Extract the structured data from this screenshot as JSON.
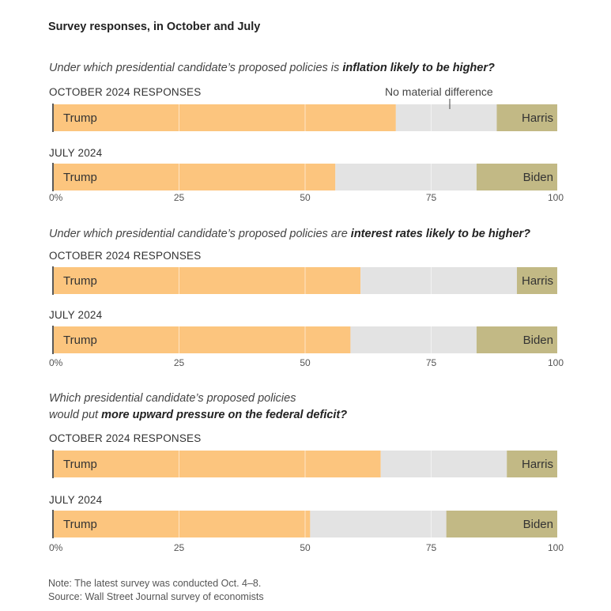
{
  "title": "Survey responses, in October and July",
  "no_material_difference_label": "No material difference",
  "colors": {
    "trump": "#fcc57e",
    "neutral": "#e3e3e3",
    "other": "#c2b985",
    "grid": "#ffffff",
    "baseline": "#5a5a5a"
  },
  "questions": [
    {
      "prefix": "Under which presidential candidate’s proposed policies is ",
      "bold": "inflation likely to be higher?"
    },
    {
      "prefix": "Under which presidential candidate’s proposed policies are ",
      "bold": "interest rates likely to be higher?"
    },
    {
      "line1": "Which presidential candidate’s proposed policies",
      "prefix2": "would put ",
      "bold": "more upward pressure on the federal deficit?"
    }
  ],
  "chart_data": {
    "type": "stacked-bar",
    "title": "Survey responses, in October and July",
    "xlim": [
      0,
      100
    ],
    "ticks": [
      "0%",
      "25",
      "50",
      "75",
      "100"
    ],
    "series_names": [
      "Trump",
      "No material difference",
      "Harris / Biden"
    ],
    "groups": [
      {
        "question": "inflation likely to be higher?",
        "bars": [
          {
            "period": "OCTOBER 2024 RESPONSES",
            "left_label": "Trump",
            "right_label": "Harris",
            "trump": 68,
            "neutral": 20,
            "other": 12
          },
          {
            "period": "JULY 2024",
            "left_label": "Trump",
            "right_label": "Biden",
            "trump": 56,
            "neutral": 28,
            "other": 16
          }
        ]
      },
      {
        "question": "interest rates likely to be higher?",
        "bars": [
          {
            "period": "OCTOBER 2024 RESPONSES",
            "left_label": "Trump",
            "right_label": "Harris",
            "trump": 61,
            "neutral": 31,
            "other": 8
          },
          {
            "period": "JULY 2024",
            "left_label": "Trump",
            "right_label": "Biden",
            "trump": 59,
            "neutral": 25,
            "other": 16
          }
        ]
      },
      {
        "question": "more upward pressure on the federal deficit?",
        "bars": [
          {
            "period": "OCTOBER 2024 RESPONSES",
            "left_label": "Trump",
            "right_label": "Harris",
            "trump": 65,
            "neutral": 25,
            "other": 10
          },
          {
            "period": "JULY 2024",
            "left_label": "Trump",
            "right_label": "Biden",
            "trump": 51,
            "neutral": 27,
            "other": 22
          }
        ]
      }
    ]
  },
  "footer": {
    "note": "Note: The latest survey was conducted Oct. 4–8.",
    "source": "Source: Wall Street Journal survey of economists"
  }
}
